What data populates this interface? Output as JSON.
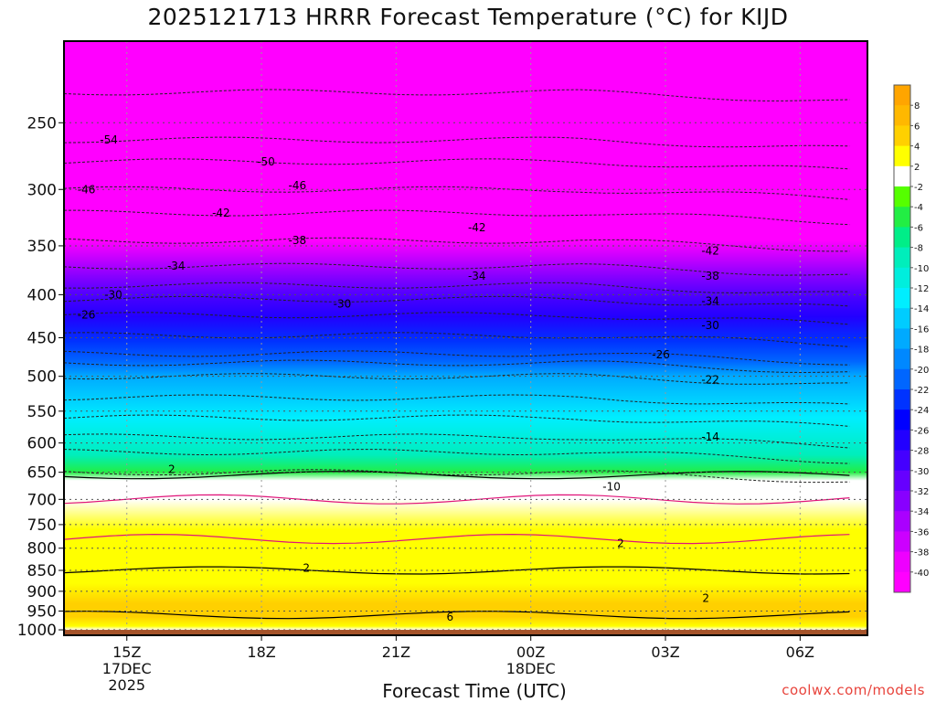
{
  "chart_data": {
    "type": "heatmap",
    "title": "2025121713 HRRR Forecast Temperature (°C) for KIJD",
    "xlabel": "Forecast Time (UTC)",
    "ylabel": "",
    "x_ticks": [
      {
        "hours": 2,
        "label": "15Z",
        "sub1": "17DEC",
        "sub2": "2025"
      },
      {
        "hours": 5,
        "label": "18Z",
        "sub1": "",
        "sub2": ""
      },
      {
        "hours": 8,
        "label": "21Z",
        "sub1": "",
        "sub2": ""
      },
      {
        "hours": 11,
        "label": "00Z",
        "sub1": "18DEC",
        "sub2": ""
      },
      {
        "hours": 14,
        "label": "03Z",
        "sub1": "",
        "sub2": ""
      },
      {
        "hours": 17,
        "label": "06Z",
        "sub1": "",
        "sub2": ""
      }
    ],
    "xlim_hours": [
      0.6,
      18.5
    ],
    "y_scale": "log-pressure",
    "y_ticks": [
      250,
      300,
      350,
      400,
      450,
      500,
      550,
      600,
      650,
      700,
      750,
      800,
      850,
      900,
      950,
      1000
    ],
    "ylim": [
      200,
      1015
    ],
    "surface_pressure": 1000,
    "grid": true,
    "legend": {
      "placement": "right",
      "labels": [
        "8",
        "6",
        "4",
        "2",
        "-2",
        "-4",
        "-6",
        "-8",
        "-10",
        "-12",
        "-14",
        "-16",
        "-18",
        "-20",
        "-22",
        "-24",
        "-26",
        "-28",
        "-30",
        "-32",
        "-34",
        "-36",
        "-38",
        "-40"
      ],
      "colors": [
        "#ffa500",
        "#ffb800",
        "#ffd000",
        "#ffff00",
        "#ffffff",
        "#55ff00",
        "#22ee44",
        "#00ee88",
        "#00eebb",
        "#00eedd",
        "#00eeff",
        "#00ccff",
        "#00aaff",
        "#0088ff",
        "#0066ff",
        "#0033ff",
        "#0000ff",
        "#2200ff",
        "#4400ff",
        "#6600ff",
        "#8800ff",
        "#aa00ff",
        "#cc00ff",
        "#ee00ff",
        "#ff00ff"
      ]
    },
    "temperature_profile": [
      {
        "p": 200,
        "t": -60
      },
      {
        "p": 230,
        "t": -57
      },
      {
        "p": 250,
        "t": -54
      },
      {
        "p": 280,
        "t": -50
      },
      {
        "p": 300,
        "t": -46
      },
      {
        "p": 330,
        "t": -42
      },
      {
        "p": 345,
        "t": -40
      },
      {
        "p": 360,
        "t": -36
      },
      {
        "p": 380,
        "t": -33
      },
      {
        "p": 405,
        "t": -29
      },
      {
        "p": 425,
        "t": -26
      },
      {
        "p": 455,
        "t": -23
      },
      {
        "p": 480,
        "t": -20
      },
      {
        "p": 500,
        "t": -17
      },
      {
        "p": 530,
        "t": -15
      },
      {
        "p": 560,
        "t": -13
      },
      {
        "p": 590,
        "t": -11
      },
      {
        "p": 620,
        "t": -8
      },
      {
        "p": 650,
        "t": -5
      },
      {
        "p": 665,
        "t": -2
      },
      {
        "p": 700,
        "t": 0
      },
      {
        "p": 760,
        "t": 2
      },
      {
        "p": 840,
        "t": 2.5
      },
      {
        "p": 880,
        "t": 3
      },
      {
        "p": 930,
        "t": 4
      },
      {
        "p": 965,
        "t": 5
      },
      {
        "p": 990,
        "t": 2
      },
      {
        "p": 1000,
        "t": 1
      }
    ],
    "contour_labels": [
      {
        "hours": 1.6,
        "p": 262,
        "text": "-54"
      },
      {
        "hours": 1.1,
        "p": 300,
        "text": "-46"
      },
      {
        "hours": 4.1,
        "p": 320,
        "text": "-42"
      },
      {
        "hours": 5.1,
        "p": 278,
        "text": "-50"
      },
      {
        "hours": 5.8,
        "p": 297,
        "text": "-46"
      },
      {
        "hours": 5.8,
        "p": 345,
        "text": "-38"
      },
      {
        "hours": 9.8,
        "p": 333,
        "text": "-42"
      },
      {
        "hours": 3.1,
        "p": 370,
        "text": "-34"
      },
      {
        "hours": 9.8,
        "p": 380,
        "text": "-34"
      },
      {
        "hours": 1.7,
        "p": 400,
        "text": "-30"
      },
      {
        "hours": 6.8,
        "p": 410,
        "text": "-30"
      },
      {
        "hours": 1.1,
        "p": 423,
        "text": "-26"
      },
      {
        "hours": 15.0,
        "p": 355,
        "text": "-42"
      },
      {
        "hours": 15.0,
        "p": 380,
        "text": "-38"
      },
      {
        "hours": 15.0,
        "p": 407,
        "text": "-34"
      },
      {
        "hours": 15.0,
        "p": 435,
        "text": "-30"
      },
      {
        "hours": 13.9,
        "p": 471,
        "text": "-26"
      },
      {
        "hours": 15.0,
        "p": 505,
        "text": "-22"
      },
      {
        "hours": 15.0,
        "p": 590,
        "text": "-14"
      },
      {
        "hours": 12.8,
        "p": 676,
        "text": "-10"
      },
      {
        "hours": 13.0,
        "p": 790,
        "text": "2"
      },
      {
        "hours": 3.0,
        "p": 645,
        "text": "2"
      },
      {
        "hours": 6.0,
        "p": 845,
        "text": "2"
      },
      {
        "hours": 9.2,
        "p": 965,
        "text": "6"
      },
      {
        "hours": 14.9,
        "p": 917,
        "text": "2"
      }
    ]
  },
  "credit": "coolwx.com/models"
}
